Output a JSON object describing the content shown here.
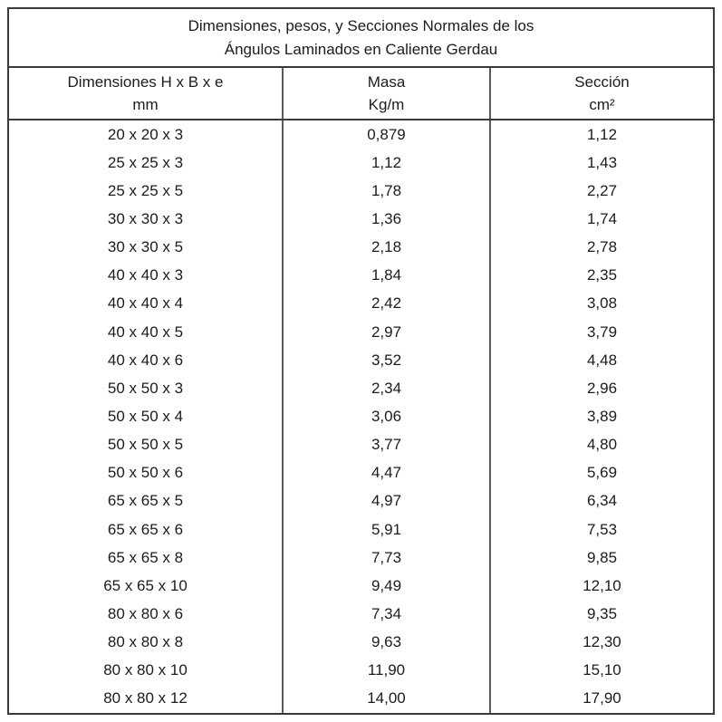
{
  "table": {
    "title_line1": "Dimensiones, pesos, y Secciones Normales de los",
    "title_line2": "Ángulos Laminados en Caliente Gerdau",
    "columns": [
      {
        "label": "Dimensiones H x B x e",
        "unit": "mm"
      },
      {
        "label": "Masa",
        "unit": "Kg/m"
      },
      {
        "label": "Sección",
        "unit": "cm²"
      }
    ],
    "rows": [
      [
        "20 x 20 x 3",
        "0,879",
        "1,12"
      ],
      [
        "25 x 25 x 3",
        "1,12",
        "1,43"
      ],
      [
        "25 x 25 x 5",
        "1,78",
        "2,27"
      ],
      [
        "30 x 30 x 3",
        "1,36",
        "1,74"
      ],
      [
        "30 x 30 x 5",
        "2,18",
        "2,78"
      ],
      [
        "40 x 40 x 3",
        "1,84",
        "2,35"
      ],
      [
        "40 x 40 x 4",
        "2,42",
        "3,08"
      ],
      [
        "40 x 40 x 5",
        "2,97",
        "3,79"
      ],
      [
        "40 x 40 x 6",
        "3,52",
        "4,48"
      ],
      [
        "50 x 50 x 3",
        "2,34",
        "2,96"
      ],
      [
        "50 x 50 x 4",
        "3,06",
        "3,89"
      ],
      [
        "50 x 50 x 5",
        "3,77",
        "4,80"
      ],
      [
        "50 x 50 x 6",
        "4,47",
        "5,69"
      ],
      [
        "65 x 65 x 5",
        "4,97",
        "6,34"
      ],
      [
        "65 x 65 x 6",
        "5,91",
        "7,53"
      ],
      [
        "65 x 65 x 8",
        "7,73",
        "9,85"
      ],
      [
        "65 x 65 x 10",
        "9,49",
        "12,10"
      ],
      [
        "80 x 80 x 6",
        "7,34",
        "9,35"
      ],
      [
        "80 x 80 x 8",
        "9,63",
        "12,30"
      ],
      [
        "80 x 80 x 10",
        "11,90",
        "15,10"
      ],
      [
        "80 x 80 x 12",
        "14,00",
        "17,90"
      ]
    ]
  },
  "colors": {
    "background": "#ffffff",
    "text": "#1c1c1c",
    "border_outer": "#3a3a3a",
    "border_inner": "#5a5a5a"
  }
}
